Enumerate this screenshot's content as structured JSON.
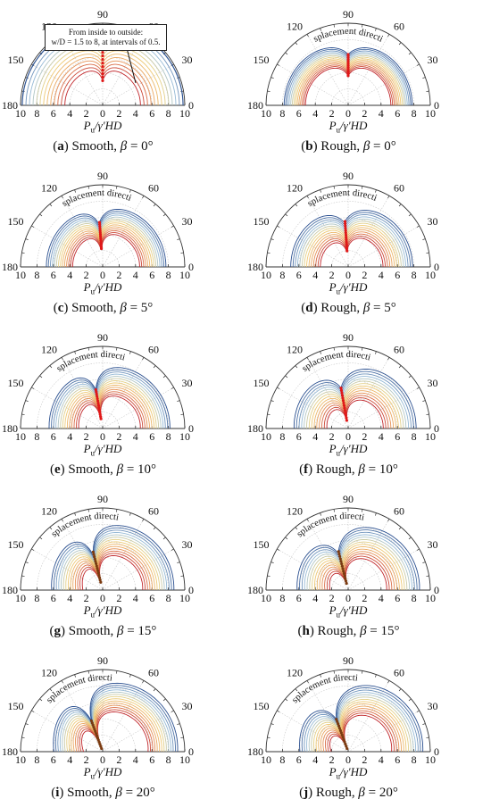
{
  "figure": {
    "angle_labels": [
      "0",
      "30",
      "60",
      "90",
      "120",
      "150",
      "180"
    ],
    "radial_ticks": [
      "10",
      "8",
      "6",
      "4",
      "2",
      "0",
      "2",
      "4",
      "6",
      "8",
      "10"
    ],
    "xlabel": "P_u/γ′HD",
    "xlabel_main": "P",
    "xlabel_sub": "u",
    "xlabel_rest": "/γ′HD",
    "arc_label": "Displacement direction",
    "annotation": {
      "line1": "From inside to outside:",
      "line2": "w/D = 1.5 to 8, at intervals of 0.5."
    },
    "colors": {
      "blue": "#2a4f8f",
      "light_blue": "#9fc3dc",
      "yellow": "#efd27a",
      "orange": "#e89a5a",
      "red": "#c0262b",
      "marker_red": "#e01818",
      "marker_brown": "#7a3a10",
      "grid": "#9a9a9a"
    }
  },
  "chart_data": [
    {
      "type": "polar-line",
      "panel": "a",
      "caption_letter": "(a)",
      "caption_text": "Smooth, β = 0°",
      "interface": "Smooth",
      "beta_deg": 0,
      "rlim": [
        0,
        10
      ],
      "theta_range_deg": [
        0,
        180
      ],
      "series_count": 14,
      "w_over_D": [
        1.5,
        2,
        2.5,
        3,
        3.5,
        4,
        4.5,
        5,
        5.5,
        6,
        6.5,
        7,
        7.5,
        8
      ],
      "Pu_at_90_range": [
        3.0,
        8.6
      ]
    },
    {
      "type": "polar-line",
      "panel": "b",
      "caption_letter": "(b)",
      "caption_text": "Rough, β = 0°",
      "interface": "Rough",
      "beta_deg": 0,
      "rlim": [
        0,
        10
      ],
      "theta_range_deg": [
        0,
        180
      ],
      "series_count": 14,
      "w_over_D": [
        1.5,
        2,
        2.5,
        3,
        3.5,
        4,
        4.5,
        5,
        5.5,
        6,
        6.5,
        7,
        7.5,
        8
      ],
      "Pu_at_90_range": [
        3.6,
        6.2
      ]
    },
    {
      "type": "polar-line",
      "panel": "c",
      "caption_letter": "(c)",
      "caption_text": "Smooth, β = 5°",
      "interface": "Smooth",
      "beta_deg": 5,
      "rlim": [
        0,
        10
      ],
      "theta_range_deg": [
        0,
        180
      ],
      "series_count": 14,
      "w_over_D": [
        1.5,
        2,
        2.5,
        3,
        3.5,
        4,
        4.5,
        5,
        5.5,
        6,
        6.5,
        7,
        7.5,
        8
      ],
      "Pu_at_90_range": [
        2.0,
        5.2
      ]
    },
    {
      "type": "polar-line",
      "panel": "d",
      "caption_letter": "(d)",
      "caption_text": "Rough, β = 5°",
      "interface": "Rough",
      "beta_deg": 5,
      "rlim": [
        0,
        10
      ],
      "theta_range_deg": [
        0,
        180
      ],
      "series_count": 14,
      "w_over_D": [
        1.5,
        2,
        2.5,
        3,
        3.5,
        4,
        4.5,
        5,
        5.5,
        6,
        6.5,
        7,
        7.5,
        8
      ],
      "Pu_at_90_range": [
        1.8,
        5.4
      ]
    },
    {
      "type": "polar-line",
      "panel": "e",
      "caption_letter": "(e)",
      "caption_text": "Smooth, β = 10°",
      "interface": "Smooth",
      "beta_deg": 10,
      "rlim": [
        0,
        10
      ],
      "theta_range_deg": [
        0,
        180
      ],
      "series_count": 14,
      "w_over_D": [
        1.5,
        2,
        2.5,
        3,
        3.5,
        4,
        4.5,
        5,
        5.5,
        6,
        6.5,
        7,
        7.5,
        8
      ],
      "Pu_at_90_range": [
        1.2,
        4.8
      ]
    },
    {
      "type": "polar-line",
      "panel": "f",
      "caption_letter": "(f)",
      "caption_text": "Rough, β = 10°",
      "interface": "Rough",
      "beta_deg": 10,
      "rlim": [
        0,
        10
      ],
      "theta_range_deg": [
        0,
        180
      ],
      "series_count": 14,
      "w_over_D": [
        1.5,
        2,
        2.5,
        3,
        3.5,
        4,
        4.5,
        5,
        5.5,
        6,
        6.5,
        7,
        7.5,
        8
      ],
      "Pu_at_90_range": [
        1.0,
        5.0
      ]
    },
    {
      "type": "polar-line",
      "panel": "g",
      "caption_letter": "(g)",
      "caption_text": "Smooth, β = 15°",
      "interface": "Smooth",
      "beta_deg": 15,
      "rlim": [
        0,
        10
      ],
      "theta_range_deg": [
        0,
        180
      ],
      "series_count": 14,
      "w_over_D": [
        1.5,
        2,
        2.5,
        3,
        3.5,
        4,
        4.5,
        5,
        5.5,
        6,
        6.5,
        7,
        7.5,
        8
      ],
      "Pu_at_90_range": [
        0.6,
        4.4
      ]
    },
    {
      "type": "polar-line",
      "panel": "h",
      "caption_letter": "(h)",
      "caption_text": "Rough, β = 15°",
      "interface": "Rough",
      "beta_deg": 15,
      "rlim": [
        0,
        10
      ],
      "theta_range_deg": [
        0,
        180
      ],
      "series_count": 14,
      "w_over_D": [
        1.5,
        2,
        2.5,
        3,
        3.5,
        4,
        4.5,
        5,
        5.5,
        6,
        6.5,
        7,
        7.5,
        8
      ],
      "Pu_at_90_range": [
        0.6,
        4.6
      ]
    },
    {
      "type": "polar-line",
      "panel": "i",
      "caption_letter": "(i)",
      "caption_text": "Smooth, β = 20°",
      "interface": "Smooth",
      "beta_deg": 20,
      "rlim": [
        0,
        10
      ],
      "theta_range_deg": [
        0,
        180
      ],
      "series_count": 14,
      "w_over_D": [
        1.5,
        2,
        2.5,
        3,
        3.5,
        4,
        4.5,
        5,
        5.5,
        6,
        6.5,
        7,
        7.5,
        8
      ],
      "Pu_at_90_range": [
        0.4,
        4.0
      ]
    },
    {
      "type": "polar-line",
      "panel": "j",
      "caption_letter": "(j)",
      "caption_text": "Rough, β = 20°",
      "interface": "Rough",
      "beta_deg": 20,
      "rlim": [
        0,
        10
      ],
      "theta_range_deg": [
        0,
        180
      ],
      "series_count": 14,
      "w_over_D": [
        1.5,
        2,
        2.5,
        3,
        3.5,
        4,
        4.5,
        5,
        5.5,
        6,
        6.5,
        7,
        7.5,
        8
      ],
      "Pu_at_90_range": [
        0.4,
        4.2
      ]
    }
  ]
}
